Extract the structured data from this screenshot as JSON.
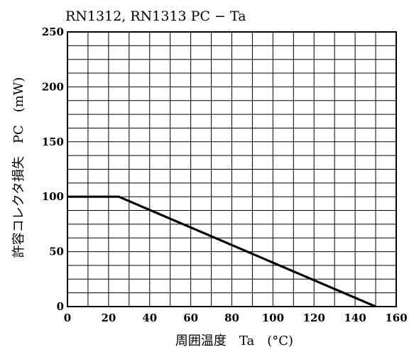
{
  "chart_data": {
    "type": "line",
    "title": "RN1312, RN1313   PC  −  Ta",
    "xlabel": "周囲温度　Ta　(°C)",
    "ylabel": "許容コレクタ損失　PC　(mW)",
    "xlim": [
      0,
      160
    ],
    "ylim": [
      0,
      250
    ],
    "x_ticks": [
      0,
      20,
      40,
      60,
      80,
      100,
      120,
      140,
      160
    ],
    "y_ticks": [
      0,
      50,
      100,
      150,
      200,
      250
    ],
    "grid": true,
    "series": [
      {
        "x": [
          0,
          25,
          150
        ],
        "y": [
          100,
          100,
          0
        ]
      }
    ]
  }
}
